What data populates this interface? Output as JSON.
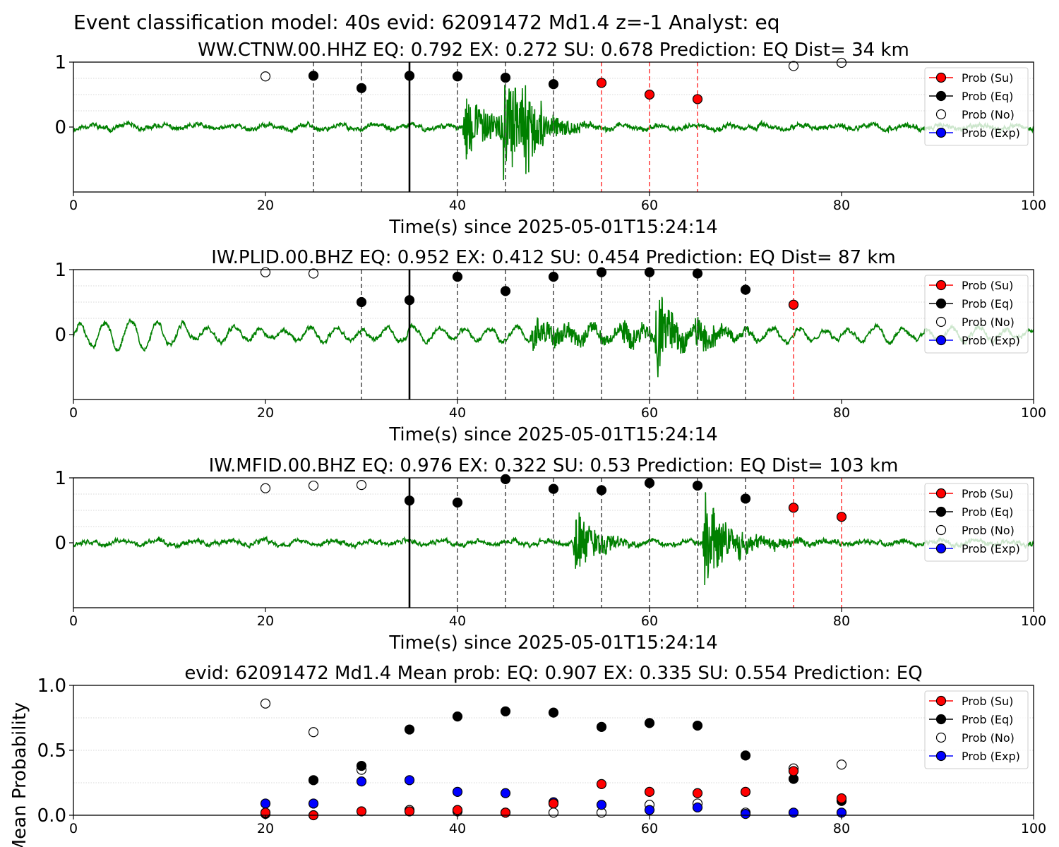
{
  "suptitle": "Event classification model: 40s evid: 62091472 Md1.4 z=-1 Analyst: eq",
  "legend": [
    "Prob (Su)",
    "Prob (Eq)",
    "Prob (No)",
    "Prob (Exp)"
  ],
  "colors": {
    "su": "#ff0000",
    "eq": "#000000",
    "no": "#ffffff",
    "exp": "#0000ff",
    "waveform": "#008000",
    "window_line": "#555555"
  },
  "chart_data": [
    {
      "type": "scatter",
      "title": "WW.CTNW.00.HHZ   EQ: 0.792  EX: 0.272  SU: 0.678   Prediction: EQ    Dist= 34 km",
      "xlabel": "Time(s) since 2025-05-01T15:24:14",
      "ylabel": "",
      "xlim": [
        0,
        100
      ],
      "ylim": [
        -1,
        1
      ],
      "xticks": [
        "0",
        "20",
        "40",
        "60",
        "80",
        "100"
      ],
      "yticks": [
        "0",
        "1"
      ],
      "grid": "horizontal dotted",
      "legend_position": "top-right",
      "origin_line": 35,
      "waveform": {
        "seed": 11,
        "base": 0.05,
        "bursts": [
          [
            40.5,
            6.5,
            0.55
          ],
          [
            44.5,
            6.5,
            1.0
          ],
          [
            46.5,
            2.5,
            0.9
          ]
        ]
      },
      "points": [
        {
          "x": 20,
          "class": "no",
          "y": 0.78
        },
        {
          "x": 25,
          "class": "eq",
          "y": 0.79
        },
        {
          "x": 30,
          "class": "eq",
          "y": 0.6
        },
        {
          "x": 35,
          "class": "eq",
          "y": 0.79
        },
        {
          "x": 40,
          "class": "eq",
          "y": 0.78
        },
        {
          "x": 45,
          "class": "eq",
          "y": 0.76
        },
        {
          "x": 50,
          "class": "eq",
          "y": 0.66
        },
        {
          "x": 55,
          "class": "su",
          "y": 0.68
        },
        {
          "x": 60,
          "class": "su",
          "y": 0.5
        },
        {
          "x": 65,
          "class": "su",
          "y": 0.43
        },
        {
          "x": 75,
          "class": "no",
          "y": 0.94
        },
        {
          "x": 80,
          "class": "no",
          "y": 0.99
        }
      ]
    },
    {
      "type": "scatter",
      "title": "IW.PLID.00.BHZ   EQ: 0.952  EX: 0.412  SU: 0.454   Prediction: EQ    Dist= 87 km",
      "xlabel": "Time(s) since 2025-05-01T15:24:14",
      "ylabel": "",
      "xlim": [
        0,
        100
      ],
      "ylim": [
        -1,
        1
      ],
      "xticks": [
        "0",
        "20",
        "40",
        "60",
        "80",
        "100"
      ],
      "yticks": [
        "0",
        "1"
      ],
      "grid": "horizontal dotted",
      "legend_position": "top-right",
      "origin_line": 35,
      "waveform": {
        "seed": 23,
        "base": 0.05,
        "swell": 0.2,
        "bursts": [
          [
            47.5,
            14,
            0.25
          ],
          [
            57,
            6,
            0.25
          ],
          [
            60.5,
            4,
            0.85
          ],
          [
            64.5,
            6,
            0.35
          ]
        ]
      },
      "points": [
        {
          "x": 20,
          "class": "no",
          "y": 0.96
        },
        {
          "x": 25,
          "class": "no",
          "y": 0.94
        },
        {
          "x": 30,
          "class": "eq",
          "y": 0.5
        },
        {
          "x": 35,
          "class": "eq",
          "y": 0.53
        },
        {
          "x": 40,
          "class": "eq",
          "y": 0.89
        },
        {
          "x": 45,
          "class": "eq",
          "y": 0.67
        },
        {
          "x": 50,
          "class": "eq",
          "y": 0.89
        },
        {
          "x": 55,
          "class": "eq",
          "y": 0.96
        },
        {
          "x": 60,
          "class": "eq",
          "y": 0.96
        },
        {
          "x": 65,
          "class": "eq",
          "y": 0.94
        },
        {
          "x": 70,
          "class": "eq",
          "y": 0.69
        },
        {
          "x": 75,
          "class": "su",
          "y": 0.46
        }
      ]
    },
    {
      "type": "scatter",
      "title": "IW.MFID.00.BHZ   EQ: 0.976  EX: 0.322  SU: 0.53   Prediction: EQ    Dist= 103 km",
      "xlabel": "Time(s) since 2025-05-01T15:24:14",
      "ylabel": "",
      "xlim": [
        0,
        100
      ],
      "ylim": [
        -1,
        1
      ],
      "xticks": [
        "0",
        "20",
        "40",
        "60",
        "80",
        "100"
      ],
      "yticks": [
        "0",
        "1"
      ],
      "grid": "horizontal dotted",
      "legend_position": "top-right",
      "origin_line": 35,
      "waveform": {
        "seed": 37,
        "base": 0.05,
        "bursts": [
          [
            52,
            5,
            0.6
          ],
          [
            65.5,
            4,
            1.0
          ],
          [
            69,
            12,
            0.15
          ]
        ]
      },
      "points": [
        {
          "x": 20,
          "class": "no",
          "y": 0.84
        },
        {
          "x": 25,
          "class": "no",
          "y": 0.88
        },
        {
          "x": 30,
          "class": "no",
          "y": 0.89
        },
        {
          "x": 35,
          "class": "eq",
          "y": 0.65
        },
        {
          "x": 40,
          "class": "eq",
          "y": 0.62
        },
        {
          "x": 45,
          "class": "eq",
          "y": 0.98
        },
        {
          "x": 50,
          "class": "eq",
          "y": 0.83
        },
        {
          "x": 55,
          "class": "eq",
          "y": 0.81
        },
        {
          "x": 60,
          "class": "eq",
          "y": 0.92
        },
        {
          "x": 65,
          "class": "eq",
          "y": 0.88
        },
        {
          "x": 70,
          "class": "eq",
          "y": 0.68
        },
        {
          "x": 75,
          "class": "su",
          "y": 0.54
        },
        {
          "x": 80,
          "class": "su",
          "y": 0.4
        }
      ]
    },
    {
      "type": "scatter",
      "title": "evid: 62091472  Md1.4   Mean prob:   EQ: 0.907  EX: 0.335  SU: 0.554   Prediction: EQ",
      "xlabel": "",
      "ylabel": "Mean Probability",
      "xlim": [
        0,
        100
      ],
      "ylim": [
        0,
        1
      ],
      "xticks": [
        "0",
        "20",
        "40",
        "60",
        "80",
        "100"
      ],
      "yticks": [
        "0.0",
        "0.5",
        "1.0"
      ],
      "grid": "horizontal dotted",
      "legend_position": "top-right",
      "x": [
        20,
        25,
        30,
        35,
        40,
        45,
        50,
        55,
        60,
        65,
        70,
        75,
        80
      ],
      "series": [
        {
          "name": "Prob (No)",
          "class": "no",
          "values": [
            0.86,
            0.64,
            0.35,
            0.04,
            0.03,
            0.02,
            0.02,
            0.02,
            0.08,
            0.09,
            0.02,
            0.36,
            0.39
          ]
        },
        {
          "name": "Prob (Eq)",
          "class": "eq",
          "values": [
            0.01,
            0.27,
            0.38,
            0.66,
            0.76,
            0.8,
            0.79,
            0.68,
            0.71,
            0.69,
            0.46,
            0.28,
            0.11
          ]
        },
        {
          "name": "Prob (Exp)",
          "class": "exp",
          "values": [
            0.09,
            0.09,
            0.26,
            0.27,
            0.18,
            0.17,
            0.1,
            0.08,
            0.04,
            0.06,
            0.01,
            0.02,
            0.02
          ]
        },
        {
          "name": "Prob (Su)",
          "class": "su",
          "values": [
            0.02,
            0.0,
            0.03,
            0.03,
            0.04,
            0.02,
            0.09,
            0.24,
            0.18,
            0.17,
            0.18,
            0.34,
            0.13
          ]
        }
      ]
    }
  ]
}
